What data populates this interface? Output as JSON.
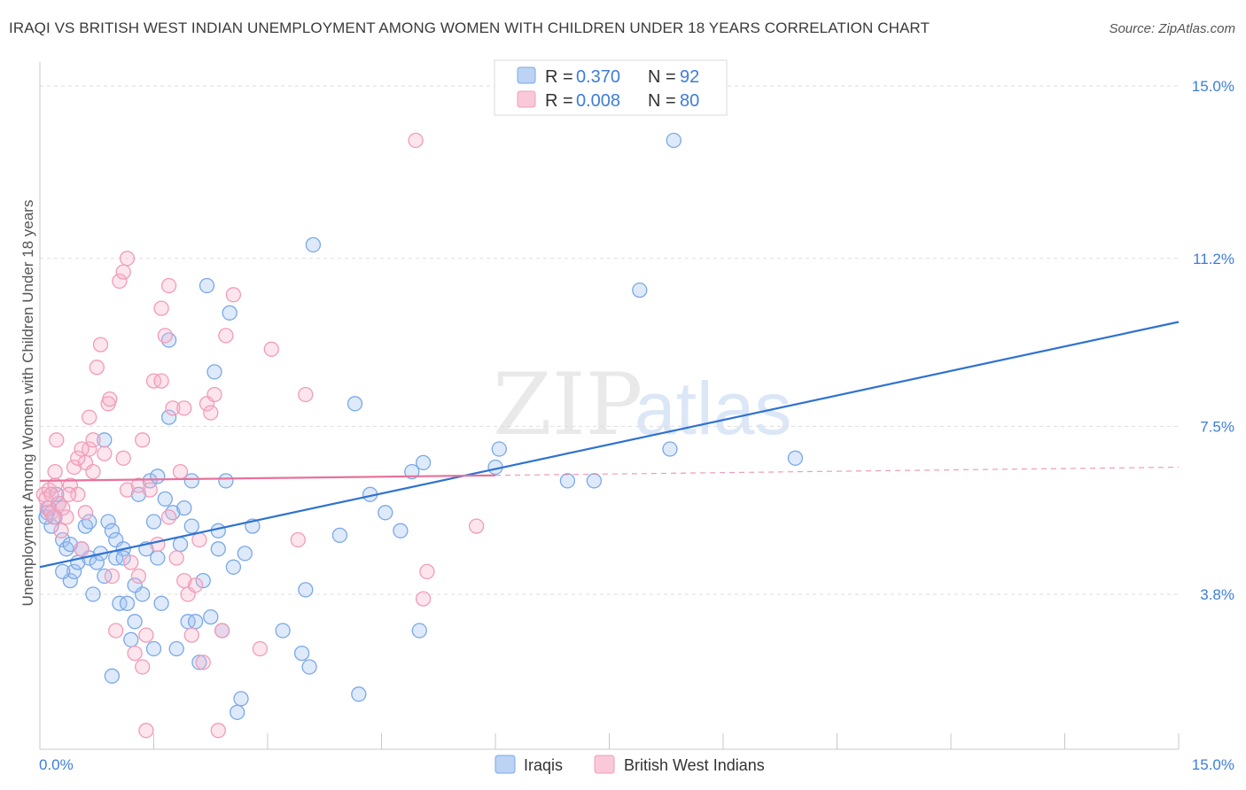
{
  "title": "IRAQI VS BRITISH WEST INDIAN UNEMPLOYMENT AMONG WOMEN WITH CHILDREN UNDER 18 YEARS CORRELATION CHART",
  "source": "Source: ZipAtlas.com",
  "watermark": {
    "zip": "ZIP",
    "atlas": "atlas"
  },
  "chart_data": {
    "type": "scatter",
    "title": "IRAQI VS BRITISH WEST INDIAN UNEMPLOYMENT AMONG WOMEN WITH CHILDREN UNDER 18 YEARS CORRELATION CHART",
    "xlabel": "",
    "ylabel": "Unemployment Among Women with Children Under 18 years",
    "xlim": [
      0,
      15
    ],
    "ylim": [
      0,
      15.5
    ],
    "x_tick_labels": {
      "left": "0.0%",
      "right": "15.0%"
    },
    "y_ticks": [
      {
        "value": 3.8,
        "label": "3.8%"
      },
      {
        "value": 7.5,
        "label": "7.5%"
      },
      {
        "value": 11.2,
        "label": "11.2%"
      },
      {
        "value": 15.0,
        "label": "15.0%"
      }
    ],
    "legend": [
      {
        "name": "Iraqis",
        "r_label": "R =",
        "r": "0.370",
        "n_label": "N =",
        "n": "92",
        "color": "#7aa8e8"
      },
      {
        "name": "British West Indians",
        "r_label": "R =",
        "r": "0.008",
        "n_label": "N =",
        "n": "80",
        "color": "#f29bb8"
      }
    ],
    "series": [
      {
        "name": "Iraqis",
        "color": "#7aa8e8",
        "trend": {
          "x0": 0,
          "y0": 4.4,
          "x1": 15,
          "y1": 9.8,
          "color": "#2f72d0",
          "dashed_from": null
        },
        "points": [
          [
            0.1,
            5.6
          ],
          [
            0.15,
            5.3
          ],
          [
            0.2,
            5.5
          ],
          [
            0.25,
            5.8
          ],
          [
            0.3,
            5.0
          ],
          [
            0.35,
            4.8
          ],
          [
            0.4,
            4.1
          ],
          [
            0.45,
            4.3
          ],
          [
            0.5,
            4.5
          ],
          [
            0.6,
            5.3
          ],
          [
            0.65,
            4.6
          ],
          [
            0.7,
            3.8
          ],
          [
            0.75,
            4.5
          ],
          [
            0.8,
            4.7
          ],
          [
            0.85,
            4.2
          ],
          [
            0.9,
            5.4
          ],
          [
            0.95,
            5.2
          ],
          [
            1.0,
            5.0
          ],
          [
            1.05,
            3.6
          ],
          [
            1.1,
            4.8
          ],
          [
            1.15,
            3.6
          ],
          [
            1.2,
            2.8
          ],
          [
            1.25,
            3.2
          ],
          [
            1.3,
            6.0
          ],
          [
            1.35,
            3.8
          ],
          [
            1.4,
            4.8
          ],
          [
            1.45,
            6.3
          ],
          [
            1.5,
            5.4
          ],
          [
            1.55,
            4.6
          ],
          [
            1.6,
            3.6
          ],
          [
            1.65,
            5.9
          ],
          [
            1.7,
            9.4
          ],
          [
            1.75,
            5.6
          ],
          [
            1.8,
            2.6
          ],
          [
            1.85,
            4.9
          ],
          [
            1.9,
            5.7
          ],
          [
            1.95,
            3.2
          ],
          [
            2.0,
            6.3
          ],
          [
            2.05,
            3.2
          ],
          [
            2.1,
            2.3
          ],
          [
            2.15,
            4.1
          ],
          [
            2.2,
            10.6
          ],
          [
            2.25,
            3.3
          ],
          [
            2.3,
            8.7
          ],
          [
            2.35,
            4.8
          ],
          [
            2.4,
            3.0
          ],
          [
            2.45,
            6.3
          ],
          [
            2.5,
            10.0
          ],
          [
            2.55,
            4.4
          ],
          [
            2.6,
            1.2
          ],
          [
            2.65,
            1.5
          ],
          [
            2.7,
            4.7
          ],
          [
            2.8,
            5.3
          ],
          [
            3.2,
            3.0
          ],
          [
            3.45,
            2.5
          ],
          [
            3.5,
            3.9
          ],
          [
            3.55,
            2.2
          ],
          [
            3.6,
            11.5
          ],
          [
            3.95,
            5.1
          ],
          [
            4.15,
            8.0
          ],
          [
            4.2,
            1.6
          ],
          [
            4.35,
            6.0
          ],
          [
            4.55,
            5.6
          ],
          [
            4.75,
            5.2
          ],
          [
            4.9,
            6.5
          ],
          [
            5.0,
            3.0
          ],
          [
            5.05,
            6.7
          ],
          [
            6.0,
            6.6
          ],
          [
            6.05,
            7.0
          ],
          [
            6.95,
            6.3
          ],
          [
            7.3,
            6.3
          ],
          [
            7.9,
            10.5
          ],
          [
            8.3,
            7.0
          ],
          [
            8.35,
            13.8
          ],
          [
            9.95,
            6.8
          ],
          [
            0.12,
            5.7
          ],
          [
            0.22,
            6.0
          ],
          [
            0.08,
            5.5
          ],
          [
            0.55,
            4.8
          ],
          [
            1.0,
            4.6
          ],
          [
            0.85,
            7.2
          ],
          [
            1.1,
            4.6
          ],
          [
            1.55,
            6.4
          ],
          [
            2.35,
            5.2
          ],
          [
            2.0,
            5.3
          ],
          [
            1.7,
            7.7
          ],
          [
            1.5,
            2.6
          ],
          [
            0.4,
            4.9
          ],
          [
            0.3,
            4.3
          ],
          [
            0.65,
            5.4
          ],
          [
            1.25,
            4.0
          ],
          [
            0.95,
            2.0
          ]
        ]
      },
      {
        "name": "British West Indians",
        "color": "#f29bb8",
        "trend": {
          "x0": 0,
          "y0": 6.3,
          "x1": 15,
          "y1": 6.6,
          "color": "#e8719a",
          "dashed_from": 6.0
        },
        "points": [
          [
            0.05,
            6.0
          ],
          [
            0.1,
            5.7
          ],
          [
            0.12,
            6.1
          ],
          [
            0.15,
            5.6
          ],
          [
            0.18,
            5.5
          ],
          [
            0.2,
            6.2
          ],
          [
            0.22,
            7.2
          ],
          [
            0.25,
            5.8
          ],
          [
            0.3,
            5.7
          ],
          [
            0.35,
            5.5
          ],
          [
            0.4,
            6.2
          ],
          [
            0.45,
            6.6
          ],
          [
            0.5,
            6.0
          ],
          [
            0.55,
            4.8
          ],
          [
            0.6,
            6.7
          ],
          [
            0.65,
            7.0
          ],
          [
            0.7,
            6.5
          ],
          [
            0.75,
            8.8
          ],
          [
            0.8,
            9.3
          ],
          [
            0.85,
            6.9
          ],
          [
            0.9,
            8.0
          ],
          [
            0.95,
            4.2
          ],
          [
            1.0,
            3.0
          ],
          [
            1.05,
            10.7
          ],
          [
            1.1,
            10.9
          ],
          [
            1.15,
            6.1
          ],
          [
            1.2,
            4.5
          ],
          [
            1.25,
            2.5
          ],
          [
            1.3,
            4.2
          ],
          [
            1.35,
            7.2
          ],
          [
            1.4,
            2.9
          ],
          [
            1.45,
            6.1
          ],
          [
            1.5,
            8.5
          ],
          [
            1.55,
            4.9
          ],
          [
            1.6,
            8.5
          ],
          [
            1.65,
            9.5
          ],
          [
            1.7,
            10.6
          ],
          [
            1.75,
            7.9
          ],
          [
            1.8,
            4.6
          ],
          [
            1.85,
            6.5
          ],
          [
            1.9,
            4.1
          ],
          [
            1.95,
            3.8
          ],
          [
            2.0,
            2.9
          ],
          [
            2.05,
            4.0
          ],
          [
            2.1,
            5.0
          ],
          [
            2.15,
            2.3
          ],
          [
            2.2,
            8.0
          ],
          [
            2.25,
            7.8
          ],
          [
            2.3,
            8.2
          ],
          [
            2.35,
            0.8
          ],
          [
            2.4,
            3.0
          ],
          [
            2.45,
            9.5
          ],
          [
            2.55,
            10.4
          ],
          [
            2.9,
            2.6
          ],
          [
            3.05,
            9.2
          ],
          [
            3.4,
            5.0
          ],
          [
            3.5,
            8.2
          ],
          [
            4.95,
            13.8
          ],
          [
            5.05,
            3.7
          ],
          [
            5.1,
            4.3
          ],
          [
            5.75,
            5.3
          ],
          [
            0.08,
            5.9
          ],
          [
            0.28,
            5.2
          ],
          [
            0.5,
            6.8
          ],
          [
            0.65,
            7.7
          ],
          [
            0.92,
            8.1
          ],
          [
            1.15,
            11.2
          ],
          [
            1.3,
            6.2
          ],
          [
            1.6,
            10.1
          ],
          [
            1.7,
            5.5
          ],
          [
            1.9,
            7.9
          ],
          [
            0.38,
            6.0
          ],
          [
            0.6,
            5.6
          ],
          [
            0.7,
            7.2
          ],
          [
            1.1,
            6.8
          ],
          [
            1.35,
            2.2
          ],
          [
            1.4,
            0.8
          ],
          [
            0.55,
            7.0
          ],
          [
            0.2,
            6.5
          ],
          [
            0.15,
            6.0
          ]
        ]
      }
    ]
  }
}
